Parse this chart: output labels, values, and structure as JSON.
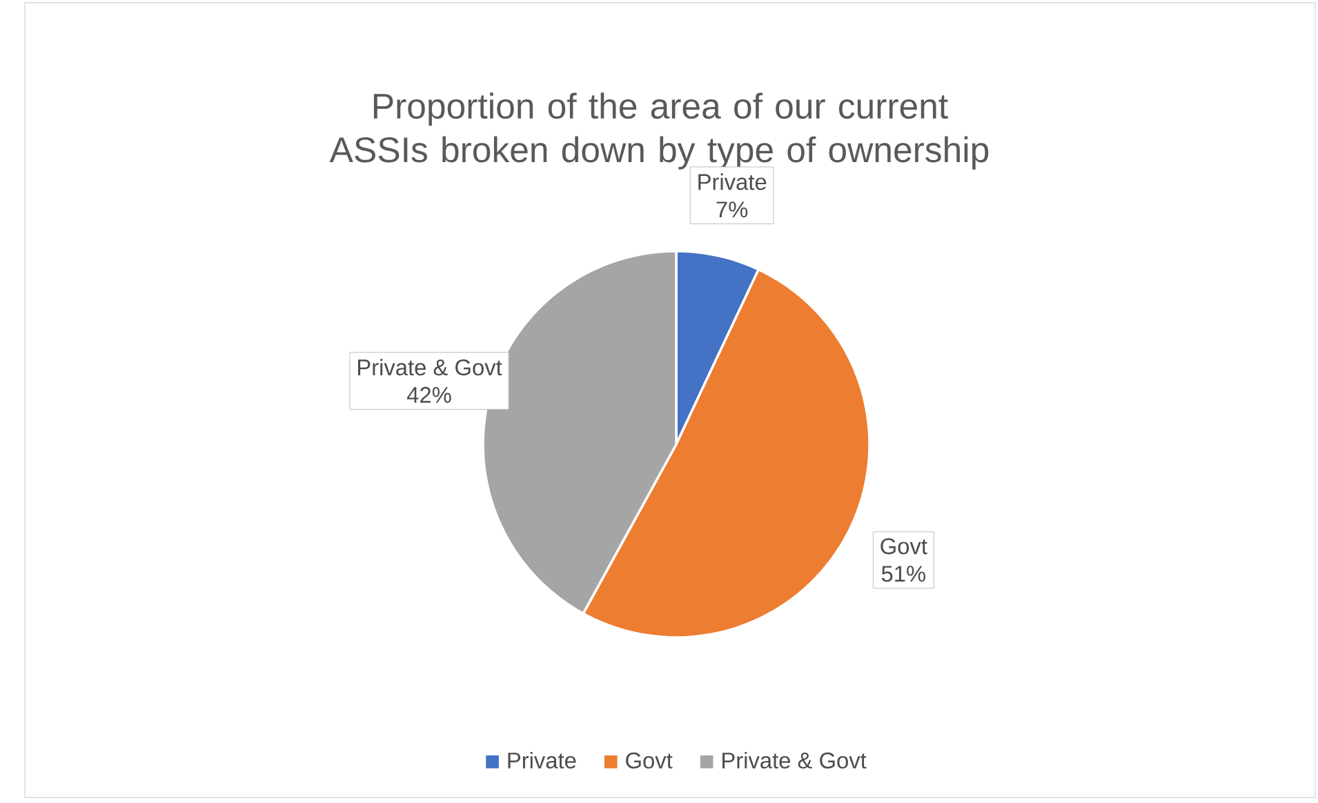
{
  "chart_data": {
    "type": "pie",
    "title": "Proportion of the area of our current ASSIs broken down by type of ownership",
    "categories": [
      "Private",
      "Govt",
      "Private & Govt"
    ],
    "values": [
      7,
      51,
      42
    ],
    "value_labels": [
      "7%",
      "51%",
      "42%"
    ],
    "colors": [
      "#4472c4",
      "#ed7d31",
      "#a5a5a5"
    ],
    "legend": "bottom"
  }
}
